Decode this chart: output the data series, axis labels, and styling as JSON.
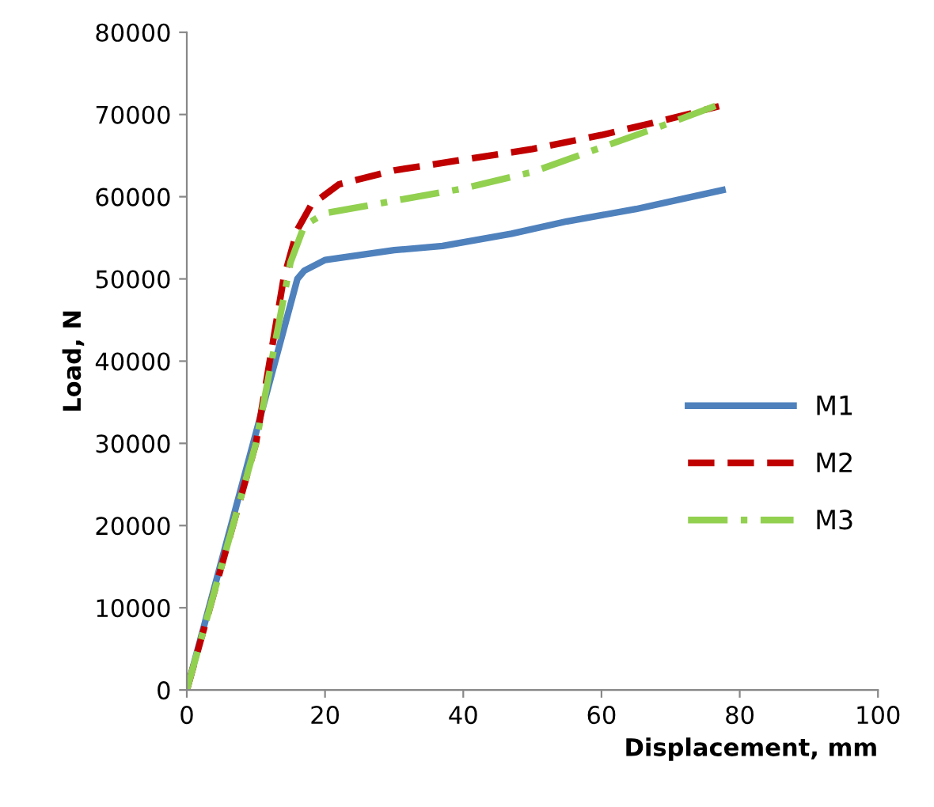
{
  "chart_data": {
    "type": "line",
    "xlabel": "Displacement, mm",
    "ylabel": "Load, N",
    "xlim": [
      0,
      100
    ],
    "xticks": [
      0,
      20,
      40,
      60,
      80,
      100
    ],
    "ylim": [
      0,
      80000
    ],
    "yticks": [
      0,
      10000,
      20000,
      30000,
      40000,
      50000,
      60000,
      70000,
      80000
    ],
    "grid": false,
    "legend": "lower right",
    "marker": "none",
    "series": [
      {
        "name": "M1",
        "color": "#4f81bd",
        "line_style": "solid",
        "x": [
          0,
          16,
          17,
          20,
          30,
          37,
          47,
          55,
          65,
          77.5
        ],
        "values": [
          0,
          50000,
          51000,
          52300,
          53500,
          54000,
          55500,
          57000,
          58500,
          60800
        ]
      },
      {
        "name": "M2",
        "color": "#c00000",
        "line_style": "dashed",
        "x": [
          0,
          10,
          14,
          16,
          18,
          22,
          30,
          40,
          50,
          60,
          70,
          77
        ],
        "values": [
          0,
          30000,
          50000,
          56000,
          59000,
          61500,
          63200,
          64500,
          65800,
          67500,
          69500,
          71000
        ]
      },
      {
        "name": "M3",
        "color": "#92d050",
        "line_style": "dashdot",
        "x": [
          0,
          10,
          15,
          17,
          20,
          30,
          40,
          50,
          60,
          70,
          77
        ],
        "values": [
          0,
          30000,
          52000,
          56500,
          58000,
          59500,
          61000,
          63000,
          66000,
          69000,
          71200
        ]
      }
    ]
  }
}
